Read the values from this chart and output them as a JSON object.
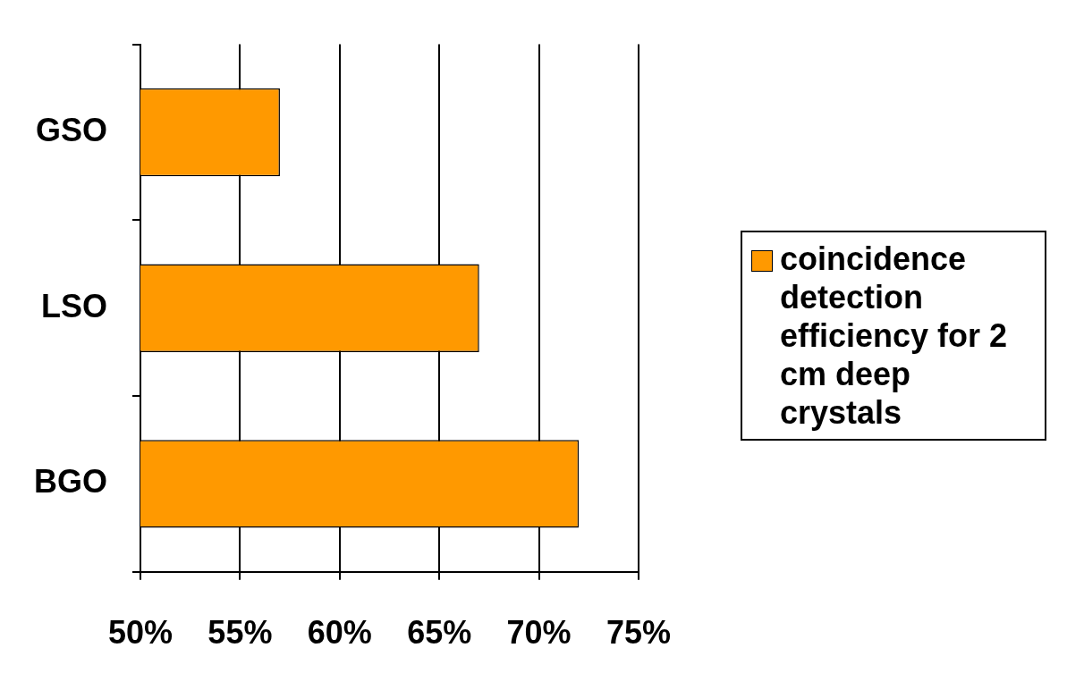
{
  "chart_data": {
    "type": "bar",
    "orientation": "horizontal",
    "categories": [
      "GSO",
      "LSO",
      "BGO"
    ],
    "series": [
      {
        "name": "coincidence detection efficiency for 2 cm deep crystals",
        "color": "#ff9900",
        "values": [
          57,
          67,
          72
        ]
      }
    ],
    "xlim": [
      50,
      75
    ],
    "xticks": [
      {
        "value": 50,
        "label": "50%"
      },
      {
        "value": 55,
        "label": "55%"
      },
      {
        "value": 60,
        "label": "60%"
      },
      {
        "value": 65,
        "label": "65%"
      },
      {
        "value": 70,
        "label": "70%"
      },
      {
        "value": 75,
        "label": "75%"
      }
    ],
    "grid": "x",
    "legend": "right"
  }
}
